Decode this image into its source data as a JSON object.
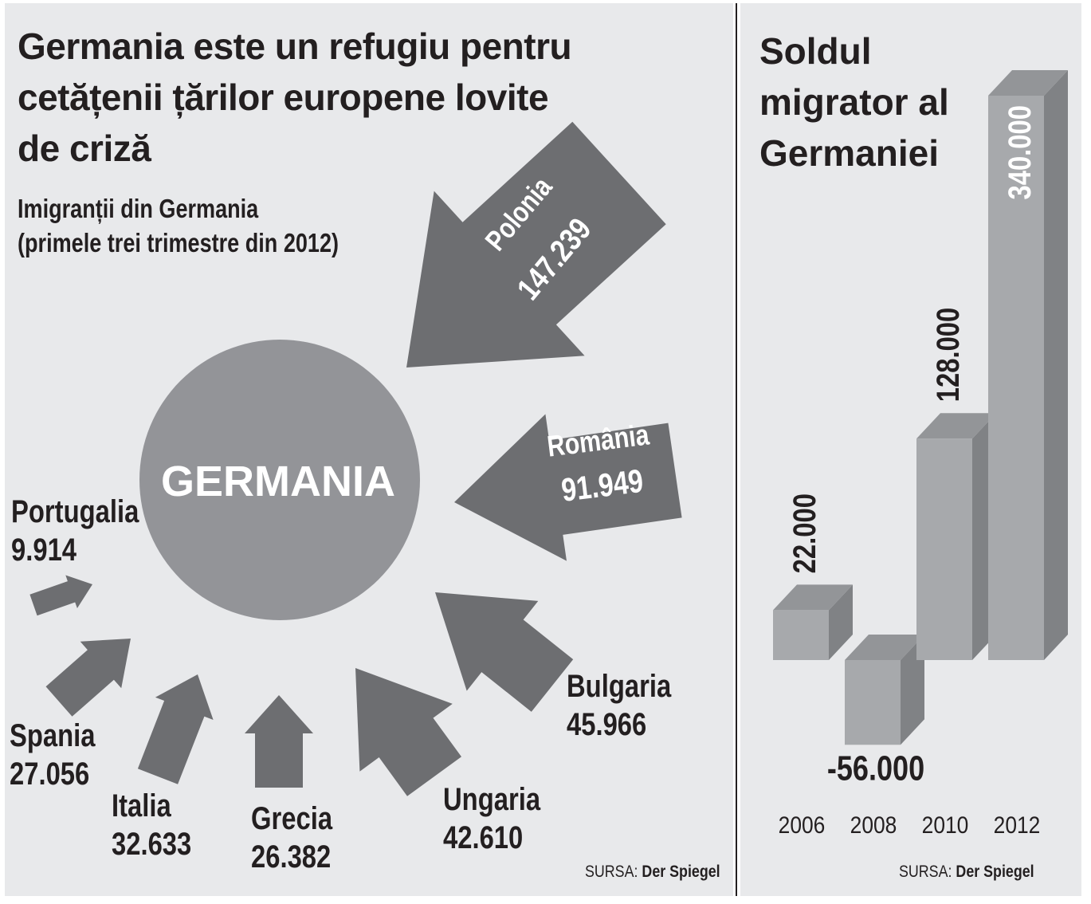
{
  "left_panel": {
    "title_lines": [
      "Germania este un refugiu pentru",
      "cetățenii țărilor europene lovite",
      "de criză"
    ],
    "subtitle_lines": [
      "Imigranții din Germania",
      "(primele trei trimestre din 2012)"
    ],
    "center_label": "GERMANIA",
    "source_label": "SURSA:",
    "source_name": "Der Spiegel"
  },
  "right_panel": {
    "title_lines": [
      "Soldul",
      "migrator al",
      "Germaniei"
    ],
    "source_label": "SURSA:",
    "source_name": "Der Spiegel"
  },
  "colors": {
    "background": "#e8e9eb",
    "circle": "#939498",
    "arrow": "#6d6e71",
    "bar_front": "#a7a9ac",
    "bar_top": "#939598",
    "bar_side": "#808285",
    "text": "#231f20"
  },
  "chart_data": [
    {
      "type": "other",
      "title": "Imigranții din Germania (primele trei trimestre din 2012)",
      "categories": [
        "Polonia",
        "România",
        "Bulgaria",
        "Ungaria",
        "Grecia",
        "Italia",
        "Spania",
        "Portugalia"
      ],
      "values": [
        147239,
        91949,
        45966,
        42610,
        26382,
        32633,
        27056,
        9914
      ],
      "value_labels": [
        "147.239",
        "91.949",
        "45.966",
        "42.610",
        "26.382",
        "32.633",
        "27.056",
        "9.914"
      ]
    },
    {
      "type": "bar",
      "title": "Soldul migrator al Germaniei",
      "categories": [
        "2006",
        "2008",
        "2010",
        "2012"
      ],
      "values": [
        22000,
        -56000,
        128000,
        340000
      ],
      "value_labels": [
        "22.000",
        "-56.000",
        "128.000",
        "340.000"
      ],
      "xlabel": "",
      "ylabel": ""
    }
  ]
}
